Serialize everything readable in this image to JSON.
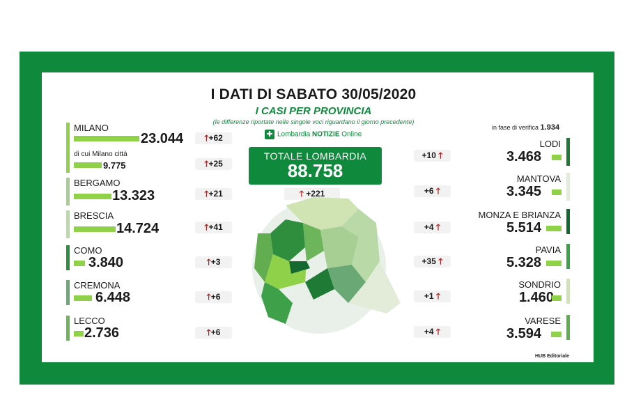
{
  "header": {
    "title": "I DATI DI SABATO 30/05/2020",
    "subtitle": "I CASI PER PROVINCIA",
    "note": "(le differenze riportate nelle singole voci riguardano il giorno precedente)",
    "brand_prefix": "Lombardia",
    "brand_main": "NOTIZIE",
    "brand_suffix": "Online",
    "verifica_label": "in fase di verifica",
    "verifica_value": "1.934",
    "credit": "HUB Editoriale"
  },
  "total": {
    "label": "TOTALE LOMBARDIA",
    "value": "88.758",
    "delta": "+221"
  },
  "colors": {
    "frame": "#0f8a3c",
    "up_arrow": "#b01e1e"
  },
  "chart_data": {
    "type": "bar",
    "title": "I CASI PER PROVINCIA",
    "categories": [
      "MILANO",
      "BERGAMO",
      "BRESCIA",
      "COMO",
      "CREMONA",
      "LECCO",
      "LODI",
      "MANTOVA",
      "MONZA E BRIANZA",
      "PAVIA",
      "SONDRIO",
      "VARESE"
    ],
    "series": [
      {
        "values": [
          23044,
          13323,
          14724,
          3840,
          6448,
          2736,
          3468,
          3345,
          5514,
          5328,
          1460,
          3594
        ]
      }
    ],
    "display_values": [
      "23.044",
      "13.323",
      "14.724",
      "3.840",
      "6.448",
      "2.736",
      "3.468",
      "3.345",
      "5.514",
      "5.328",
      "1.460",
      "3.594"
    ],
    "deltas": [
      "+62",
      "+21",
      "+41",
      "+3",
      "+6",
      "+6",
      "+10",
      "+6",
      "+4",
      "+35",
      "+1",
      "+4"
    ],
    "milano_citta": {
      "label": "di cui Milano città",
      "value": 9775,
      "display": "9.775",
      "delta": "+25"
    }
  }
}
